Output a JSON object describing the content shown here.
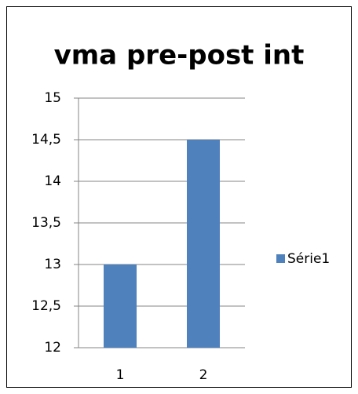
{
  "chart_data": {
    "type": "bar",
    "title": "vma pre-post int",
    "categories": [
      "1",
      "2"
    ],
    "series": [
      {
        "name": "Série1",
        "color": "#4f81bd",
        "values": [
          13,
          14.5
        ]
      }
    ],
    "ylim": [
      12,
      15
    ],
    "yticks": [
      12,
      {
        "value": 12.5,
        "label": "12,5"
      },
      13,
      {
        "value": 13.5,
        "label": "13,5"
      },
      14,
      {
        "value": 14.5,
        "label": "14,5"
      },
      15
    ],
    "grid": true,
    "legend": "right"
  }
}
